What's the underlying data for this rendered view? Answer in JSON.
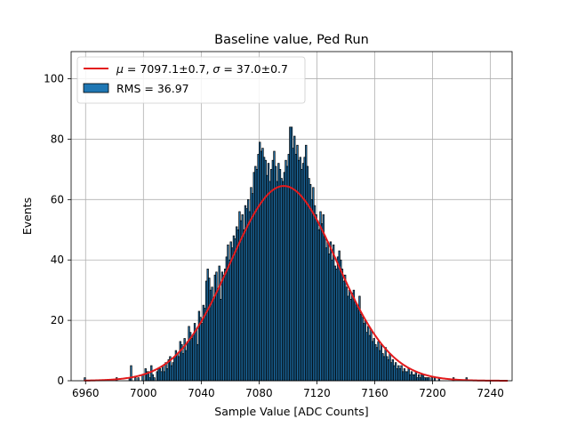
{
  "chart_data": {
    "type": "bar",
    "title": "Baseline value, Ped Run",
    "xlabel": "Sample Value [ADC Counts]",
    "ylabel": "Events",
    "xlim": [
      6950,
      7255
    ],
    "ylim": [
      0,
      109
    ],
    "grid": true,
    "legend_position": "top-left",
    "x_ticks": [
      "6960",
      "7000",
      "7040",
      "7080",
      "7120",
      "7160",
      "7200",
      "7240"
    ],
    "y_ticks": [
      "0",
      "20",
      "40",
      "60",
      "80",
      "100"
    ],
    "histogram": {
      "bin_start": 6959,
      "bin_width": 1,
      "color": "#1f77b4",
      "edge_color": "#000000",
      "counts": [
        1,
        0,
        0,
        0,
        0,
        0,
        0,
        0,
        0,
        0,
        0,
        0,
        0,
        0,
        0,
        0,
        0,
        0,
        0,
        0,
        0,
        0,
        1,
        0,
        0,
        0,
        0,
        0,
        0,
        0,
        0,
        1,
        5,
        0,
        0,
        1,
        0,
        1,
        0,
        0,
        2,
        0,
        4,
        3,
        3,
        1,
        5,
        2,
        1,
        0,
        3,
        4,
        4,
        3,
        5,
        3,
        6,
        4,
        7,
        8,
        5,
        6,
        8,
        10,
        9,
        8,
        13,
        12,
        9,
        14,
        10,
        13,
        18,
        16,
        14,
        15,
        19,
        17,
        12,
        23,
        21,
        19,
        25,
        24,
        33,
        37,
        34,
        30,
        31,
        27,
        35,
        36,
        30,
        38,
        27,
        36,
        35,
        37,
        41,
        45,
        40,
        46,
        44,
        48,
        47,
        51,
        50,
        56,
        53,
        55,
        50,
        58,
        57,
        60,
        56,
        64,
        62,
        69,
        71,
        70,
        75,
        79,
        76,
        77,
        74,
        73,
        68,
        72,
        66,
        70,
        73,
        76,
        71,
        66,
        72,
        70,
        67,
        66,
        69,
        73,
        71,
        75,
        84,
        84,
        77,
        81,
        75,
        78,
        73,
        74,
        70,
        72,
        74,
        78,
        71,
        67,
        65,
        60,
        64,
        58,
        55,
        53,
        50,
        56,
        52,
        55,
        48,
        44,
        46,
        42,
        46,
        40,
        45,
        38,
        37,
        41,
        43,
        40,
        37,
        33,
        35,
        31,
        28,
        30,
        27,
        29,
        30,
        26,
        25,
        24,
        28,
        22,
        21,
        19,
        20,
        16,
        18,
        15,
        17,
        13,
        14,
        12,
        11,
        13,
        10,
        12,
        9,
        8,
        11,
        8,
        7,
        9,
        6,
        7,
        5,
        6,
        4,
        5,
        4,
        5,
        3,
        4,
        3,
        3,
        4,
        2,
        3,
        2,
        2,
        3,
        1,
        2,
        1,
        2,
        2,
        1,
        1,
        1,
        1,
        0,
        1,
        0,
        1,
        0,
        0,
        1,
        0,
        0,
        0,
        0,
        0,
        0,
        0,
        0,
        0,
        1,
        0,
        0,
        0,
        0,
        0,
        0,
        0,
        0,
        1
      ]
    },
    "fit": {
      "type": "gaussian",
      "mu": 7097.1,
      "sigma": 37.0,
      "amplitude": 64.5,
      "x_range": [
        6959,
        7252
      ],
      "color": "#e31a1c"
    },
    "legend": [
      {
        "mark": "line",
        "color": "#e31a1c",
        "mu_label": "μ",
        "mu_text": " = 7097.1±0.7, ",
        "sigma_label": "σ",
        "sigma_text": " = 37.0±0.7"
      },
      {
        "mark": "patch",
        "color": "#1f77b4",
        "label": "RMS = 36.97"
      }
    ]
  }
}
